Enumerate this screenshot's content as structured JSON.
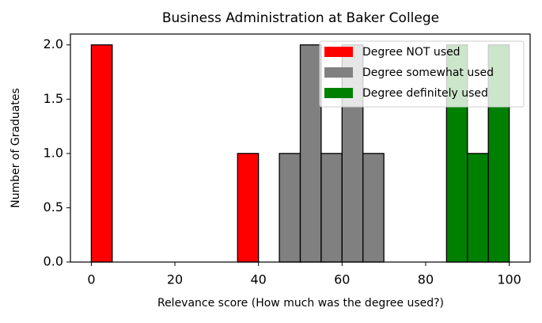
{
  "chart_data": {
    "type": "histogram",
    "title": "Business Administration at Baker College",
    "x_label": "Relevance score (How much was the degree used?)",
    "y_label": "Number of Graduates",
    "bins": [
      0,
      5,
      10,
      15,
      20,
      25,
      30,
      35,
      40,
      45,
      50,
      55,
      60,
      65,
      70,
      75,
      80,
      85,
      90,
      95,
      100
    ],
    "series": [
      {
        "name": "Degree NOT used",
        "color": "#ff0000",
        "values": [
          2,
          0,
          0,
          0,
          0,
          0,
          0,
          1,
          0,
          0,
          0,
          0,
          0,
          0,
          0,
          0,
          0,
          0,
          0,
          0
        ]
      },
      {
        "name": "Degree somewhat used",
        "color": "#808080",
        "values": [
          0,
          0,
          0,
          0,
          0,
          0,
          0,
          0,
          0,
          1,
          2,
          1,
          2,
          1,
          0,
          0,
          0,
          0,
          0,
          0
        ]
      },
      {
        "name": "Degree definitely used",
        "color": "#008000",
        "values": [
          0,
          0,
          0,
          0,
          0,
          0,
          0,
          0,
          0,
          0,
          0,
          0,
          0,
          0,
          0,
          0,
          0,
          2,
          1,
          2
        ]
      }
    ],
    "xlim": [
      -5,
      105
    ],
    "xticks": [
      0,
      20,
      40,
      60,
      80,
      100
    ],
    "ylim": [
      0,
      2.1
    ],
    "yticks": [
      {
        "value": 0,
        "label": "0.0"
      },
      {
        "value": 0.5,
        "label": "0.5"
      },
      {
        "value": 1,
        "label": "1.0"
      },
      {
        "value": 1.5,
        "label": "1.5"
      },
      {
        "value": 2,
        "label": "2.0"
      }
    ],
    "legend": "upper right"
  }
}
